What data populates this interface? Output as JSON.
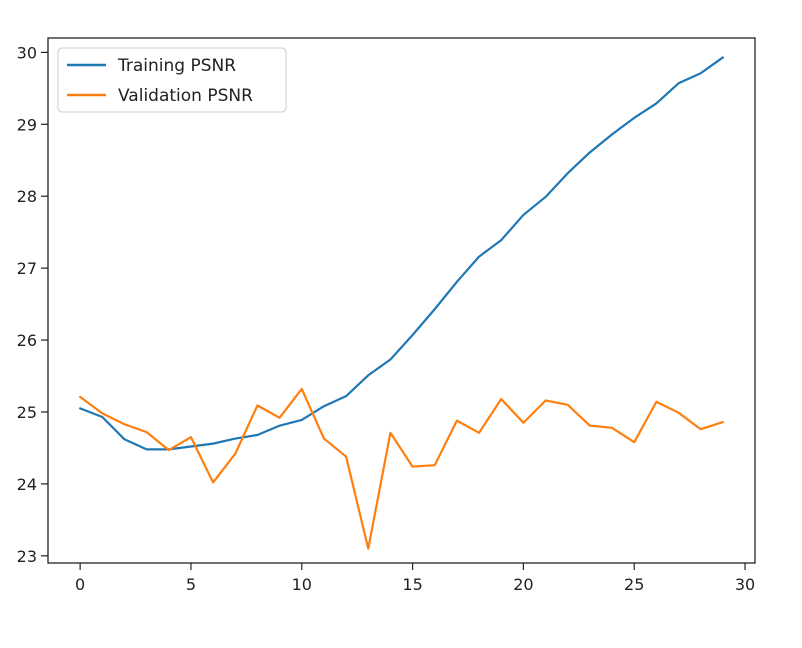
{
  "chart_data": {
    "type": "line",
    "title": "",
    "xlabel": "",
    "ylabel": "",
    "xlim": [
      -1.45,
      30.45
    ],
    "ylim": [
      22.9,
      30.2
    ],
    "xticks": [
      0,
      5,
      10,
      15,
      20,
      25,
      30
    ],
    "yticks": [
      23,
      24,
      25,
      26,
      27,
      28,
      29,
      30
    ],
    "grid": false,
    "legend_position": "top-left",
    "x": [
      0,
      1,
      2,
      3,
      4,
      5,
      6,
      7,
      8,
      9,
      10,
      11,
      12,
      13,
      14,
      15,
      16,
      17,
      18,
      19,
      20,
      21,
      22,
      23,
      24,
      25,
      26,
      27,
      28,
      29
    ],
    "series": [
      {
        "name": "Training PSNR",
        "color": "#1f77b4",
        "values": [
          25.05,
          24.93,
          24.62,
          24.48,
          24.48,
          24.52,
          24.56,
          24.63,
          24.68,
          24.81,
          24.89,
          25.08,
          25.22,
          25.51,
          25.73,
          26.07,
          26.43,
          26.81,
          27.16,
          27.39,
          27.74,
          27.99,
          28.32,
          28.61,
          28.86,
          29.09,
          29.29,
          29.57,
          29.71,
          29.93
        ]
      },
      {
        "name": "Validation PSNR",
        "color": "#ff7f0e",
        "values": [
          25.21,
          24.98,
          24.83,
          24.72,
          24.47,
          24.65,
          24.02,
          24.42,
          25.09,
          24.92,
          25.32,
          24.63,
          24.38,
          23.1,
          24.71,
          24.24,
          24.26,
          24.88,
          24.71,
          25.18,
          24.85,
          25.16,
          25.1,
          24.81,
          24.78,
          24.58,
          25.14,
          24.99,
          24.76,
          24.86
        ]
      }
    ]
  }
}
